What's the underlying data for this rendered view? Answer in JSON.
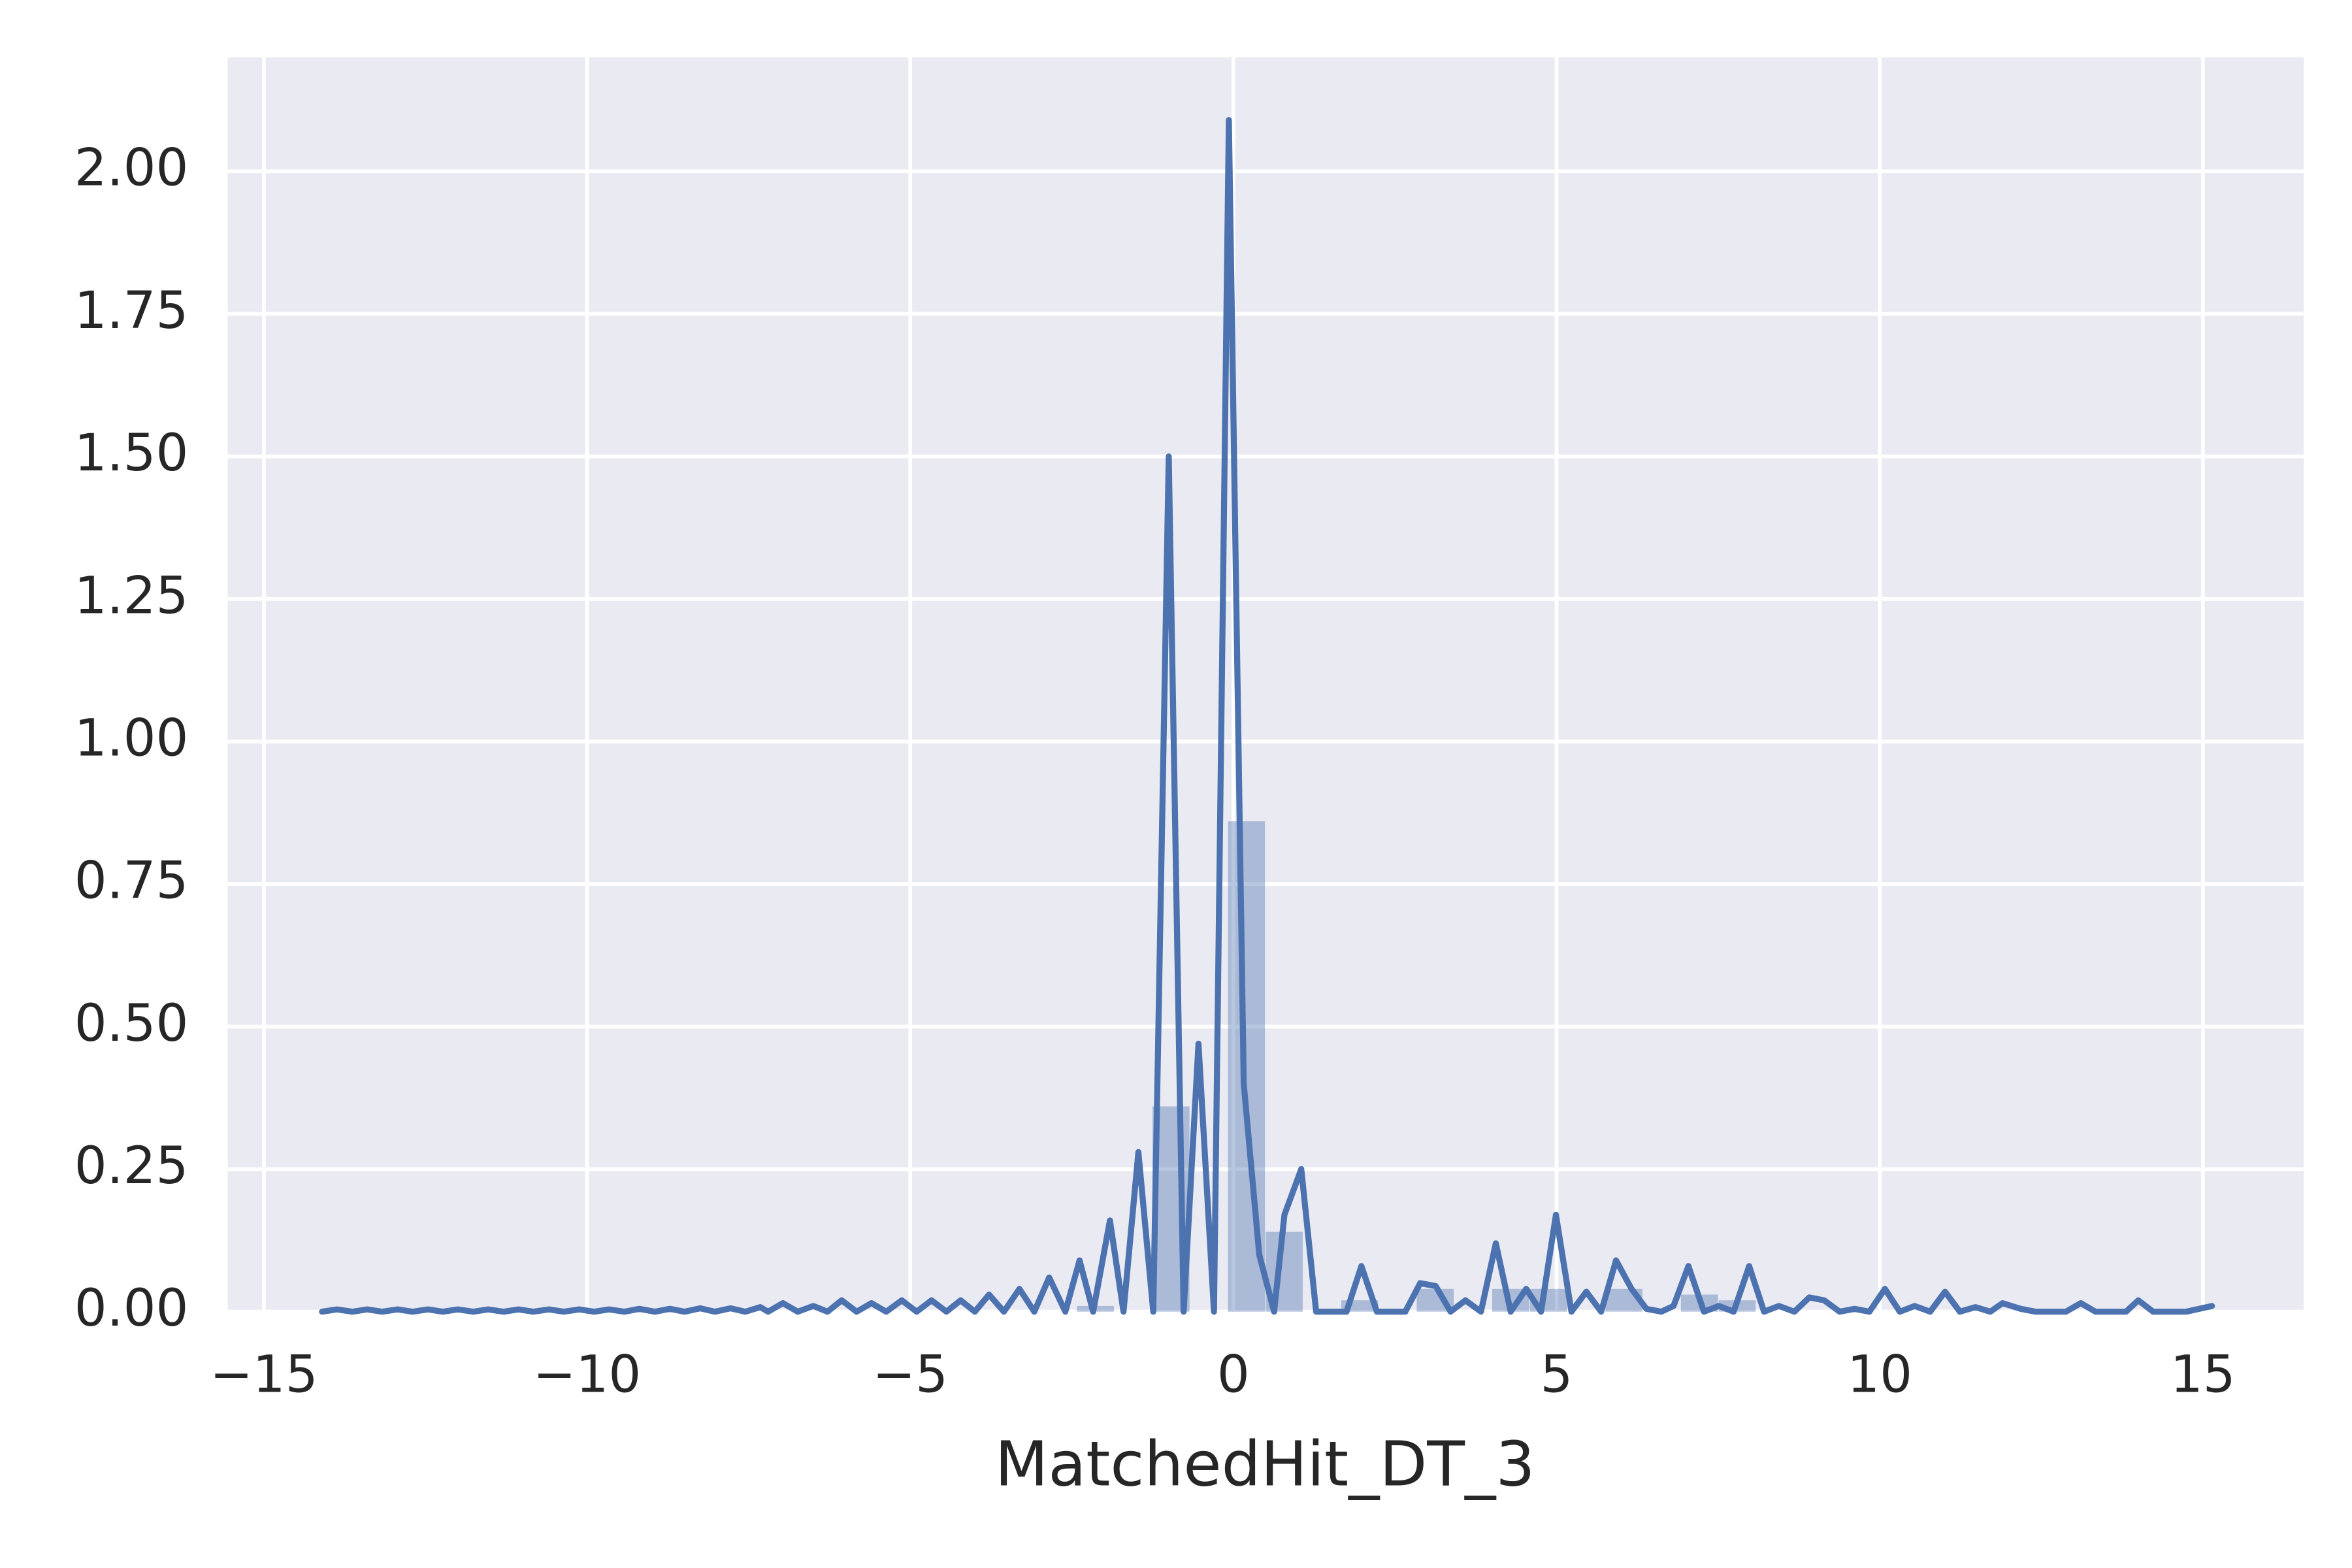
{
  "chart_data": {
    "type": "histogram",
    "x_label": "MatchedHit_DT_3",
    "xlim": [
      -15.56,
      16.56
    ],
    "ylim": [
      0,
      2.2
    ],
    "xticks": [
      {
        "value": -15,
        "label": "−15"
      },
      {
        "value": -10,
        "label": "−10"
      },
      {
        "value": -5,
        "label": "−5"
      },
      0,
      5,
      10,
      15
    ],
    "yticks": [
      {
        "value": 0,
        "label": "0.00"
      },
      {
        "value": 0.25,
        "label": "0.25"
      },
      {
        "value": 0.5,
        "label": "0.50"
      },
      {
        "value": 0.75,
        "label": "0.75"
      },
      {
        "value": 1,
        "label": "1.00"
      },
      {
        "value": 1.25,
        "label": "1.25"
      },
      {
        "value": 1.5,
        "label": "1.50"
      },
      {
        "value": 1.75,
        "label": "1.75"
      },
      {
        "value": 2,
        "label": "2.00"
      }
    ],
    "grid": true,
    "color": "#4c72b0",
    "bins": [
      -14.1,
      -13.516,
      -12.932,
      -12.348,
      -11.764,
      -11.18,
      -10.596,
      -10.012,
      -9.428,
      -8.844,
      -8.26,
      -7.676,
      -7.092,
      -6.508,
      -5.924,
      -5.34,
      -4.756,
      -4.172,
      -3.588,
      -3.004,
      -2.42,
      -1.836,
      -1.252,
      -0.668,
      -0.084,
      0.5,
      1.084,
      1.668,
      2.252,
      2.836,
      3.42,
      4.004,
      4.588,
      5.172,
      5.756,
      6.34,
      6.924,
      7.508,
      8.092,
      8.676,
      9.26,
      9.844,
      10.428,
      11.012,
      11.596,
      12.18,
      12.764,
      13.348,
      13.932,
      14.516,
      15.1
    ],
    "values": [
      0,
      0,
      0,
      0,
      0,
      0,
      0,
      0,
      0,
      0,
      0,
      0,
      0,
      0,
      0,
      0,
      0,
      0,
      0,
      0,
      0.01,
      0,
      0.36,
      0,
      0.86,
      0.14,
      0,
      0.02,
      0,
      0.04,
      0,
      0.04,
      0.04,
      0,
      0.04,
      0,
      0.03,
      0.02,
      0,
      0,
      0,
      0,
      0,
      0,
      0,
      0,
      0,
      0,
      0,
      0
    ],
    "kde": {
      "x": [
        -14.1,
        -13.87,
        -13.63,
        -13.4,
        -13.17,
        -12.93,
        -12.7,
        -12.46,
        -12.23,
        -12.0,
        -11.76,
        -11.53,
        -11.29,
        -11.06,
        -10.83,
        -10.59,
        -10.36,
        -10.12,
        -9.89,
        -9.66,
        -9.42,
        -9.19,
        -8.95,
        -8.72,
        -8.49,
        -8.25,
        -8.02,
        -7.78,
        -7.55,
        -7.32,
        -7.2,
        -6.97,
        -6.74,
        -6.5,
        -6.28,
        -6.06,
        -5.83,
        -5.6,
        -5.37,
        -5.13,
        -4.9,
        -4.67,
        -4.44,
        -4.22,
        -4.0,
        -3.78,
        -3.55,
        -3.31,
        -3.08,
        -2.85,
        -2.6,
        -2.38,
        -2.17,
        -1.91,
        -1.7,
        -1.47,
        -1.24,
        -1.0,
        -0.77,
        -0.54,
        -0.3,
        -0.07,
        0.16,
        0.4,
        0.63,
        0.79,
        1.05,
        1.28,
        1.75,
        1.98,
        2.22,
        2.66,
        2.89,
        3.13,
        3.36,
        3.59,
        3.83,
        4.06,
        4.29,
        4.53,
        4.76,
        4.99,
        5.23,
        5.46,
        5.69,
        5.92,
        6.16,
        6.39,
        6.62,
        6.81,
        7.04,
        7.28,
        7.51,
        7.74,
        7.98,
        8.21,
        8.44,
        8.68,
        8.91,
        9.14,
        9.38,
        9.61,
        9.84,
        10.08,
        10.31,
        10.54,
        10.78,
        11.01,
        11.24,
        11.48,
        11.71,
        11.9,
        12.18,
        12.41,
        12.88,
        13.11,
        13.34,
        13.81,
        14.0,
        14.23,
        14.74,
        15.14
      ],
      "values": [
        0,
        0.004,
        0,
        0.004,
        0,
        0.004,
        0,
        0.004,
        0,
        0.004,
        0,
        0.004,
        0,
        0.004,
        0,
        0.004,
        0,
        0.004,
        0,
        0.004,
        0,
        0.005,
        0,
        0.005,
        0,
        0.006,
        0,
        0.006,
        0,
        0.008,
        0,
        0.015,
        0,
        0.01,
        0,
        0.02,
        0,
        0.015,
        0,
        0.02,
        0,
        0.02,
        0,
        0.02,
        0,
        0.03,
        0,
        0.04,
        0,
        0.06,
        0,
        0.09,
        0,
        0.16,
        0,
        0.28,
        0,
        1.5,
        0,
        0.47,
        0,
        2.09,
        0.4,
        0.1,
        0,
        0.17,
        0.25,
        0,
        0,
        0.08,
        0,
        0,
        0.05,
        0.045,
        0,
        0.02,
        0,
        0.12,
        0,
        0.04,
        0,
        0.17,
        0,
        0.035,
        0,
        0.09,
        0.04,
        0.005,
        0,
        0.01,
        0.08,
        0,
        0.01,
        0,
        0.08,
        0,
        0.01,
        0,
        0.025,
        0.02,
        0,
        0.005,
        0,
        0.04,
        0,
        0.01,
        0,
        0.035,
        0,
        0.008,
        0,
        0.015,
        0.005,
        0,
        0,
        0.015,
        0,
        0,
        0.02,
        0,
        0,
        0.01
      ]
    }
  }
}
